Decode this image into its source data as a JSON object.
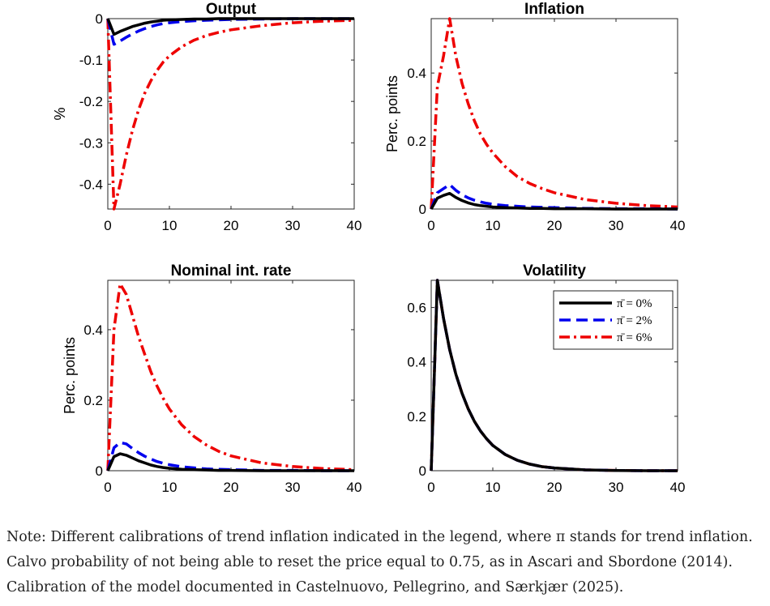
{
  "chart_data": [
    {
      "type": "line",
      "title": "Output",
      "xlabel": "",
      "ylabel": "%",
      "xlim": [
        0,
        40
      ],
      "ylim": [
        -0.46,
        0
      ],
      "xticks": [
        0,
        10,
        20,
        30,
        40
      ],
      "yticks": [
        -0.4,
        -0.3,
        -0.2,
        -0.1,
        0
      ],
      "ytick_labels": [
        "-0.4",
        "-0.3",
        "-0.2",
        "-0.1",
        "0"
      ],
      "x": [
        0,
        1,
        2,
        3,
        4,
        5,
        6,
        7,
        8,
        9,
        10,
        12,
        14,
        16,
        18,
        20,
        25,
        30,
        35,
        40
      ],
      "series": [
        {
          "color": "#000000",
          "style": "solid",
          "values": [
            0,
            -0.038,
            -0.031,
            -0.025,
            -0.019,
            -0.015,
            -0.011,
            -0.008,
            -0.006,
            -0.004,
            -0.003,
            -0.002,
            -0.001,
            -0.001,
            0,
            0,
            0,
            0,
            0,
            0
          ]
        },
        {
          "color": "#0000ee",
          "style": "dashed",
          "values": [
            0,
            -0.062,
            -0.054,
            -0.045,
            -0.037,
            -0.03,
            -0.024,
            -0.019,
            -0.015,
            -0.012,
            -0.01,
            -0.007,
            -0.005,
            -0.004,
            -0.003,
            -0.002,
            -0.001,
            0,
            0,
            0
          ]
        },
        {
          "color": "#ee0000",
          "style": "dashdot",
          "values": [
            0,
            -0.46,
            -0.4,
            -0.33,
            -0.27,
            -0.22,
            -0.18,
            -0.15,
            -0.125,
            -0.105,
            -0.09,
            -0.068,
            -0.052,
            -0.041,
            -0.033,
            -0.027,
            -0.017,
            -0.01,
            -0.006,
            -0.004
          ]
        }
      ]
    },
    {
      "type": "line",
      "title": "Inflation",
      "xlabel": "",
      "ylabel": "Perc. points",
      "xlim": [
        0,
        40
      ],
      "ylim": [
        0,
        0.56
      ],
      "xticks": [
        0,
        10,
        20,
        30,
        40
      ],
      "yticks": [
        0,
        0.2,
        0.4
      ],
      "ytick_labels": [
        "0",
        "0.2",
        "0.4"
      ],
      "x": [
        0,
        1,
        2,
        3,
        4,
        5,
        6,
        7,
        8,
        9,
        10,
        12,
        14,
        16,
        18,
        20,
        25,
        30,
        35,
        40
      ],
      "series": [
        {
          "color": "#000000",
          "style": "solid",
          "values": [
            0,
            0.032,
            0.04,
            0.046,
            0.034,
            0.025,
            0.018,
            0.013,
            0.01,
            0.008,
            0.006,
            0.004,
            0.003,
            0.002,
            0.002,
            0.001,
            0.001,
            0,
            0,
            0
          ]
        },
        {
          "color": "#0000ee",
          "style": "dashed",
          "values": [
            0,
            0.048,
            0.06,
            0.072,
            0.055,
            0.042,
            0.033,
            0.026,
            0.021,
            0.017,
            0.014,
            0.01,
            0.008,
            0.006,
            0.005,
            0.004,
            0.002,
            0.001,
            0.001,
            0
          ]
        },
        {
          "color": "#ee0000",
          "style": "dashdot",
          "values": [
            0,
            0.36,
            0.45,
            0.56,
            0.45,
            0.37,
            0.31,
            0.26,
            0.22,
            0.19,
            0.165,
            0.125,
            0.095,
            0.075,
            0.06,
            0.048,
            0.028,
            0.017,
            0.01,
            0.006
          ]
        }
      ]
    },
    {
      "type": "line",
      "title": "Nominal int. rate",
      "xlabel": "",
      "ylabel": "Perc. points",
      "xlim": [
        0,
        40
      ],
      "ylim": [
        0,
        0.54
      ],
      "xticks": [
        0,
        10,
        20,
        30,
        40
      ],
      "yticks": [
        0,
        0.2,
        0.4
      ],
      "ytick_labels": [
        "0",
        "0.2",
        "0.4"
      ],
      "x": [
        0,
        1,
        2,
        3,
        4,
        5,
        6,
        7,
        8,
        9,
        10,
        12,
        14,
        16,
        18,
        20,
        25,
        30,
        35,
        40
      ],
      "series": [
        {
          "color": "#000000",
          "style": "solid",
          "values": [
            0,
            0.04,
            0.048,
            0.044,
            0.036,
            0.028,
            0.022,
            0.016,
            0.012,
            0.009,
            0.007,
            0.004,
            0.003,
            0.002,
            0.001,
            0.001,
            0,
            0,
            0,
            0
          ]
        },
        {
          "color": "#0000ee",
          "style": "dashed",
          "values": [
            0,
            0.065,
            0.08,
            0.076,
            0.063,
            0.051,
            0.041,
            0.033,
            0.026,
            0.021,
            0.017,
            0.011,
            0.008,
            0.005,
            0.004,
            0.003,
            0.001,
            0.001,
            0,
            0
          ]
        },
        {
          "color": "#ee0000",
          "style": "dashdot",
          "values": [
            0,
            0.4,
            0.53,
            0.5,
            0.44,
            0.38,
            0.33,
            0.28,
            0.24,
            0.205,
            0.175,
            0.13,
            0.097,
            0.073,
            0.055,
            0.042,
            0.022,
            0.012,
            0.006,
            0.003
          ]
        }
      ]
    },
    {
      "type": "line",
      "title": "Volatility",
      "xlabel": "",
      "ylabel": "",
      "xlim": [
        0,
        40
      ],
      "ylim": [
        0,
        0.7
      ],
      "xticks": [
        0,
        10,
        20,
        30,
        40
      ],
      "yticks": [
        0,
        0.2,
        0.4,
        0.6
      ],
      "ytick_labels": [
        "0",
        "0.2",
        "0.4",
        "0.6"
      ],
      "legend": "top-right",
      "x": [
        0,
        1,
        2,
        3,
        4,
        5,
        6,
        7,
        8,
        9,
        10,
        12,
        14,
        16,
        18,
        20,
        25,
        30,
        35,
        40
      ],
      "series": [
        {
          "name": "π̄ = 0%",
          "color": "#000000",
          "style": "solid",
          "values": [
            0,
            0.7,
            0.56,
            0.445,
            0.355,
            0.285,
            0.228,
            0.182,
            0.146,
            0.117,
            0.093,
            0.06,
            0.038,
            0.024,
            0.015,
            0.01,
            0.003,
            0.001,
            0,
            0
          ]
        },
        {
          "name": "π̄ = 2%",
          "color": "#0000ee",
          "style": "dashed",
          "values": [
            0,
            0.7,
            0.56,
            0.445,
            0.355,
            0.285,
            0.228,
            0.182,
            0.146,
            0.117,
            0.093,
            0.06,
            0.038,
            0.024,
            0.015,
            0.01,
            0.003,
            0.001,
            0,
            0
          ]
        },
        {
          "name": "π̄ = 6%",
          "color": "#ee0000",
          "style": "dashdot",
          "values": [
            0,
            0.7,
            0.56,
            0.445,
            0.355,
            0.285,
            0.228,
            0.182,
            0.146,
            0.117,
            0.093,
            0.06,
            0.038,
            0.024,
            0.015,
            0.01,
            0.003,
            0.001,
            0,
            0
          ]
        }
      ]
    }
  ],
  "note": {
    "line1": "Note: Different calibrations of trend inflation indicated in the legend, where π stands for trend inflation.",
    "line2": "Calvo probability of not being able to reset the price equal to 0.75, as in Ascari and Sbordone (2014).",
    "line3": "Calibration of the model documented in Castelnuovo, Pellegrino, and Særkjær (2025)."
  }
}
